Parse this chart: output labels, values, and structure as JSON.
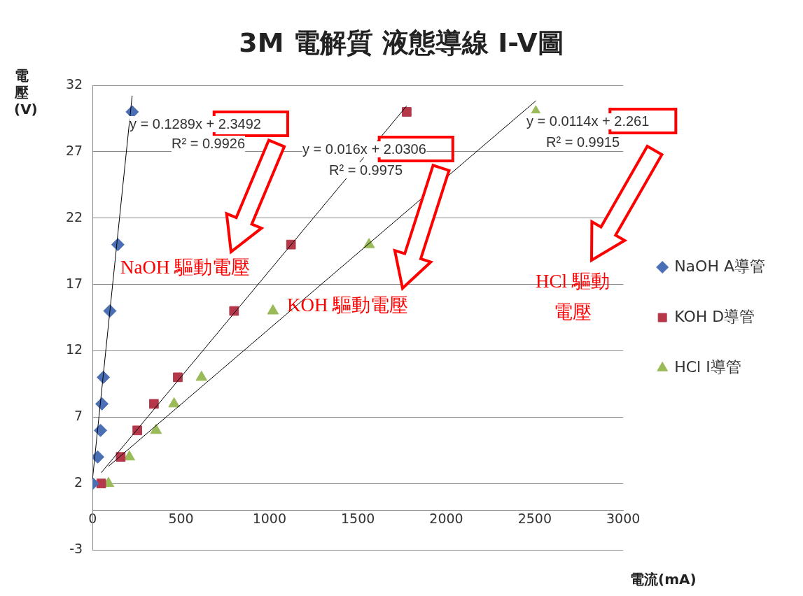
{
  "chart_data": {
    "type": "scatter",
    "title": "3M 電解質 液態導線 I-V圖",
    "xlabel": "電流(mA)",
    "ylabel": "電壓(V)",
    "xlim": [
      0,
      3000
    ],
    "xticks": [
      0,
      500,
      1000,
      1500,
      2000,
      2500,
      3000
    ],
    "ylim": [
      -3,
      32
    ],
    "yticks": [
      -3,
      2,
      7,
      12,
      17,
      22,
      27,
      32
    ],
    "grid": "y",
    "legend": "right",
    "series": [
      {
        "name": "NaOH A導管",
        "color": "#4a6fb5",
        "marker": "diamond",
        "x": [
          0,
          29,
          45,
          53,
          61,
          98,
          143,
          224
        ],
        "values": [
          2,
          4,
          6,
          8,
          10,
          15,
          20,
          30
        ]
      },
      {
        "name": "KOH D導管",
        "color": "#b5384a",
        "marker": "square",
        "x": [
          49,
          159,
          253,
          347,
          482,
          800,
          1122,
          1776
        ],
        "values": [
          2,
          4,
          6,
          8,
          10,
          15,
          20,
          30
        ]
      },
      {
        "name": "HCl I導管",
        "color": "#9bbb59",
        "marker": "triangle",
        "x": [
          90,
          208,
          359,
          461,
          616,
          1020,
          1563,
          2506
        ],
        "values": [
          2,
          4,
          6,
          8,
          10,
          15,
          20,
          30
        ]
      },
      {
        "type": "line",
        "color": "#000000",
        "marker": "none",
        "x": [
          0,
          224
        ],
        "values": [
          2.35,
          31.22
        ]
      },
      {
        "type": "line",
        "color": "#000000",
        "marker": "none",
        "x": [
          49,
          1776
        ],
        "values": [
          2.81,
          30.45
        ]
      },
      {
        "type": "line",
        "color": "#000000",
        "marker": "none",
        "x": [
          90,
          2506
        ],
        "values": [
          3.29,
          30.83
        ]
      }
    ],
    "annotations": [
      "y = 0.1289x + 2.3492",
      "R² = 0.9926",
      "y = 0.016x + 2.0306",
      "R² = 0.9975",
      "y = 0.0114x + 2.261",
      "R² = 0.9915",
      "NaOH 驅動電壓",
      "KOH 驅動電壓",
      "HCl 驅動電壓"
    ]
  }
}
